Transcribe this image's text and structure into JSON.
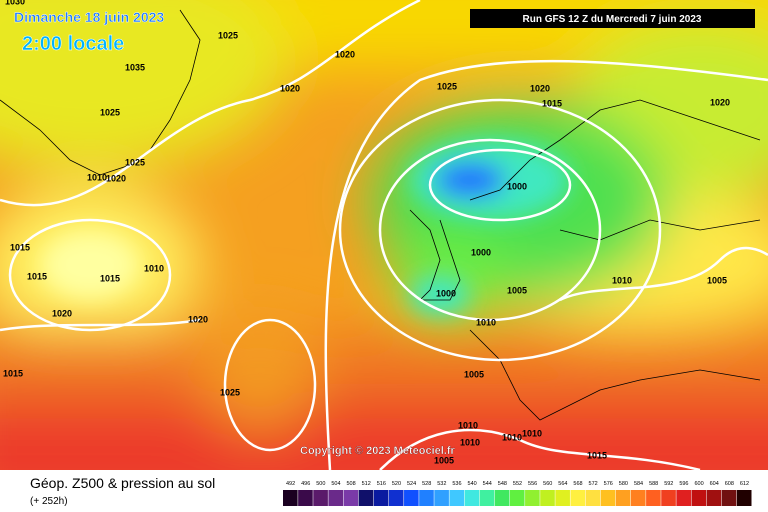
{
  "header": {
    "date": "Dimanche 18 juin 2023",
    "time": "2:00 locale",
    "run": "Run GFS 12 Z du Mercredi 7 juin 2023"
  },
  "copyright": "Copyright © 2023 Meteociel.fr",
  "legend": {
    "title": "Géop. Z500 & pression au sol",
    "lead": "(+ 252h)",
    "scale": [
      492,
      496,
      500,
      504,
      508,
      512,
      516,
      520,
      524,
      528,
      532,
      536,
      540,
      544,
      548,
      552,
      556,
      560,
      564,
      568,
      572,
      576,
      580,
      584,
      588,
      592,
      596,
      600,
      604,
      608,
      612
    ],
    "colors": [
      "#1a0020",
      "#3a0a4a",
      "#5a1a6a",
      "#6a2a8a",
      "#7a3aa8",
      "#10106a",
      "#0a1aa0",
      "#1030d0",
      "#1050ff",
      "#2080ff",
      "#30a0ff",
      "#40c8ff",
      "#40e8e0",
      "#40f0a0",
      "#40e860",
      "#60f040",
      "#90f030",
      "#c0f020",
      "#e0f020",
      "#fff040",
      "#ffe040",
      "#ffc020",
      "#ffa020",
      "#ff8020",
      "#ff6020",
      "#f04020",
      "#e02020",
      "#c01010",
      "#a01010",
      "#701010",
      "#200000"
    ]
  },
  "isobars": [
    "1030",
    "1025",
    "1020",
    "1035",
    "1020",
    "1025",
    "1020",
    "1015",
    "1020",
    "1025",
    "1025",
    "1010",
    "1020",
    "1000",
    "1015",
    "1000",
    "1010",
    "1015",
    "1015",
    "1010",
    "1005",
    "1000",
    "1005",
    "1020",
    "1020",
    "1010",
    "1015",
    "1005",
    "1025",
    "1010",
    "1010",
    "1010",
    "1010",
    "1015",
    "1005"
  ]
}
